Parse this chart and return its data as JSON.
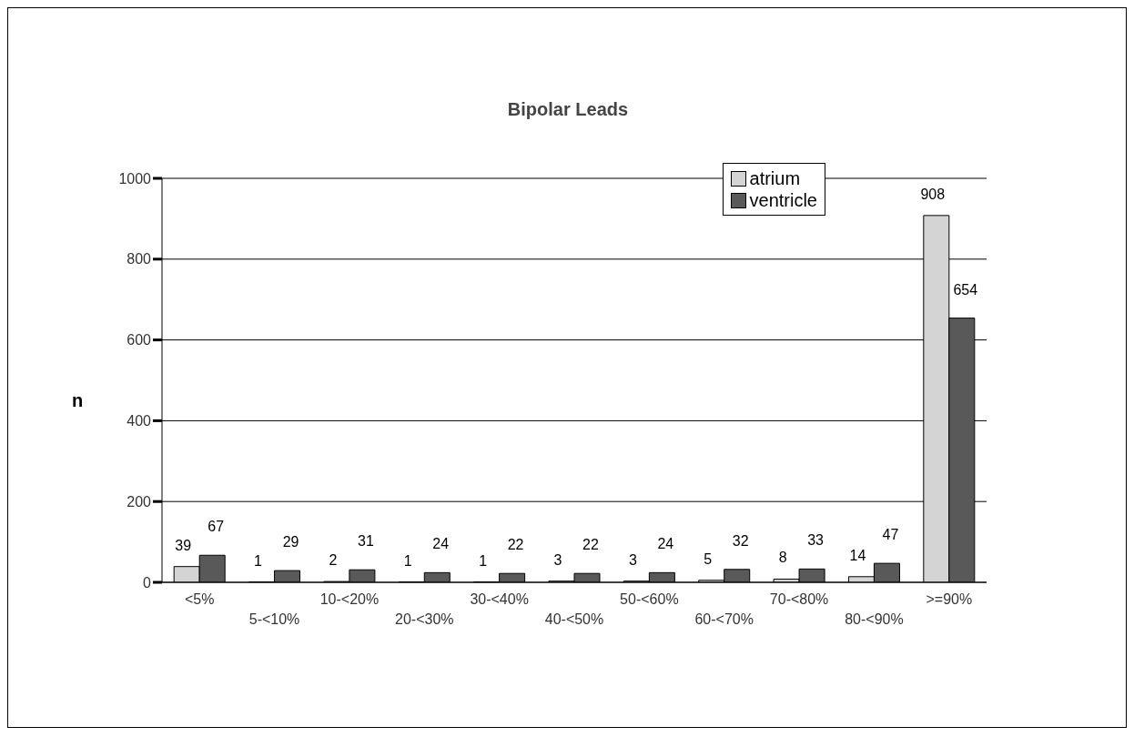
{
  "chart_data": {
    "type": "bar",
    "title": "Bipolar Leads",
    "ylabel": "n",
    "categories": [
      "<5%",
      "5-<10%",
      "10-<20%",
      "20-<30%",
      "30-<40%",
      "40-<50%",
      "50-<60%",
      "60-<70%",
      "70-<80%",
      "80-<90%",
      ">=90%"
    ],
    "series": [
      {
        "name": "atrium",
        "color": "#d4d4d4",
        "values": [
          39,
          1,
          2,
          1,
          1,
          3,
          3,
          5,
          8,
          14,
          908
        ]
      },
      {
        "name": "ventricle",
        "color": "#595959",
        "values": [
          67,
          29,
          31,
          24,
          22,
          22,
          24,
          32,
          33,
          47,
          654
        ]
      }
    ],
    "ylim": [
      0,
      1000
    ],
    "yticks": [
      0,
      200,
      400,
      600,
      800,
      1000
    ],
    "grid": "y",
    "legend": "top right",
    "data_labels": true
  }
}
